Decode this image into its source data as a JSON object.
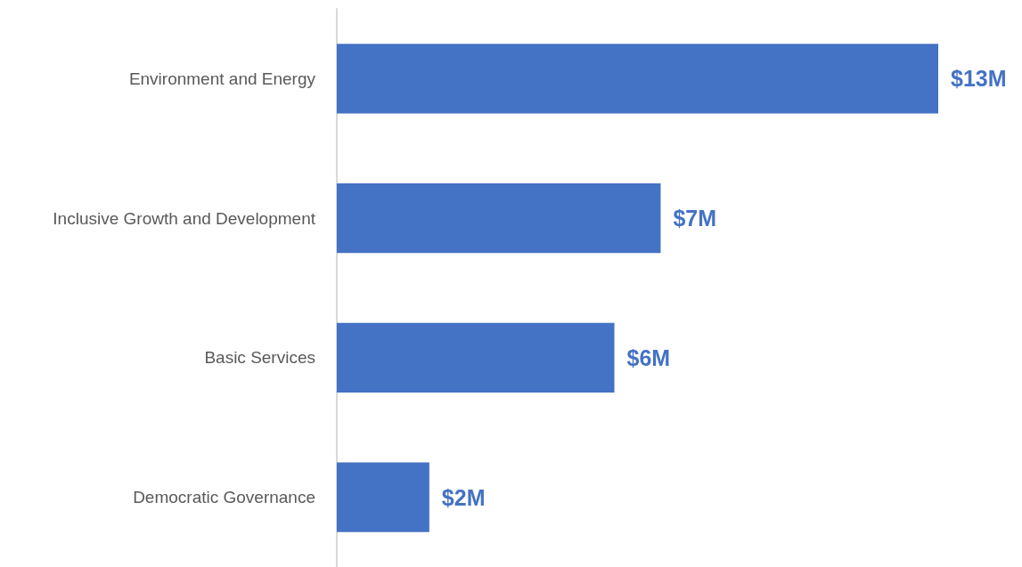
{
  "chart_data": {
    "type": "bar",
    "orientation": "horizontal",
    "categories": [
      "Environment and Energy",
      "Inclusive Growth and Development",
      "Basic Services",
      "Democratic Governance"
    ],
    "values": [
      13,
      7,
      6,
      2
    ],
    "color": "#4472c4",
    "value_labels": [
      "$13M",
      "$7M",
      "$6M",
      "$2M"
    ]
  }
}
